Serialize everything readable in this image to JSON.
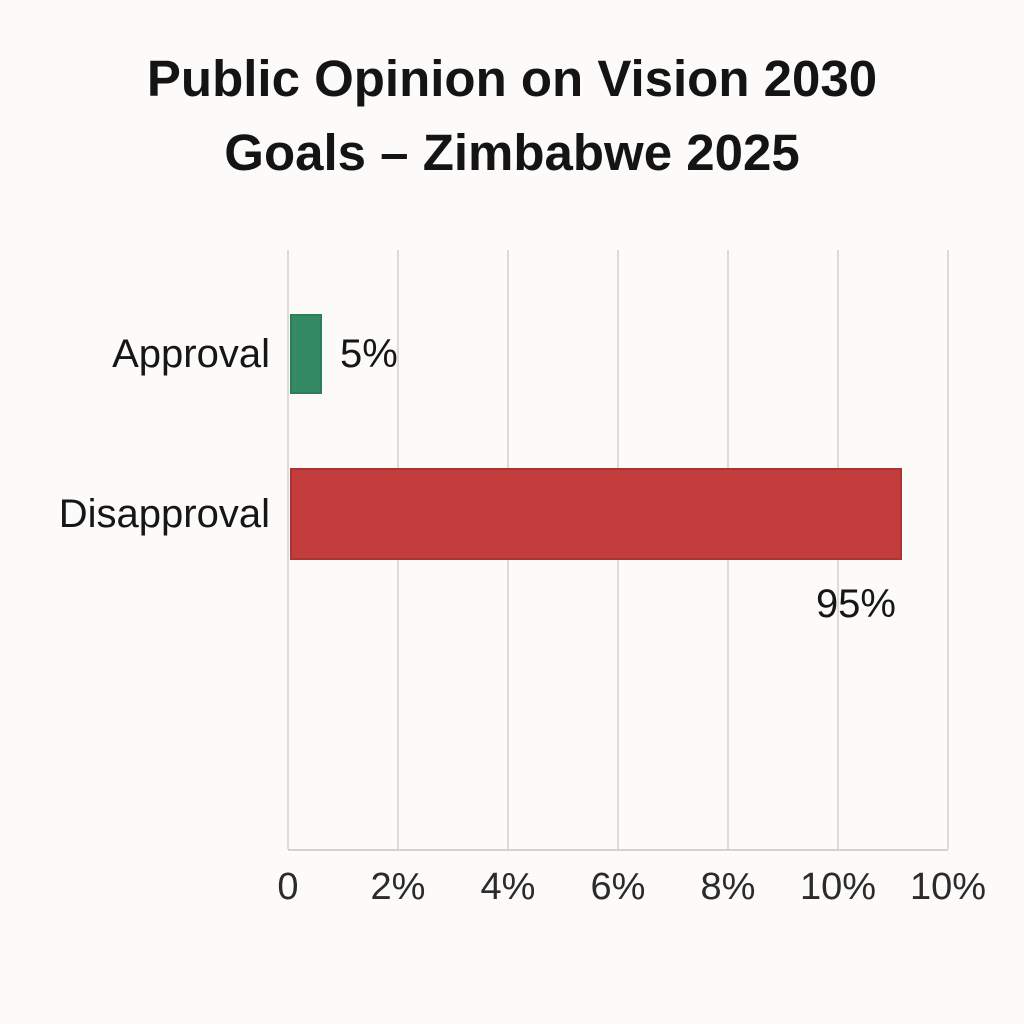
{
  "title": {
    "line1": "Public Opinion on Vision 2030",
    "line2": "Goals – Zimbabwe 2025"
  },
  "chart_data": {
    "type": "bar",
    "orientation": "horizontal",
    "title": "Public Opinion on Vision 2030 Goals – Zimbabwe 2025",
    "categories": [
      "Approval",
      "Disapproval"
    ],
    "values": [
      5,
      95
    ],
    "value_labels": [
      "5%",
      "95%"
    ],
    "bar_colors": [
      "#348a63",
      "#c23d3c"
    ],
    "bar_border_colors": [
      "#2b7e57",
      "#ab3331"
    ],
    "value_label_positions": [
      "right",
      "below-right"
    ],
    "x_tick_labels": [
      "0",
      "2%",
      "4%",
      "6%",
      "8%",
      "10%",
      "10%"
    ],
    "xlim": [
      0,
      102.5
    ],
    "grid": "vertical-gridlines",
    "legend": "none",
    "background_color": "#fcfbf9",
    "gridline_color": "#dedbd6",
    "axis_line_color": "#d5d2cd",
    "text_color": "#161616"
  }
}
